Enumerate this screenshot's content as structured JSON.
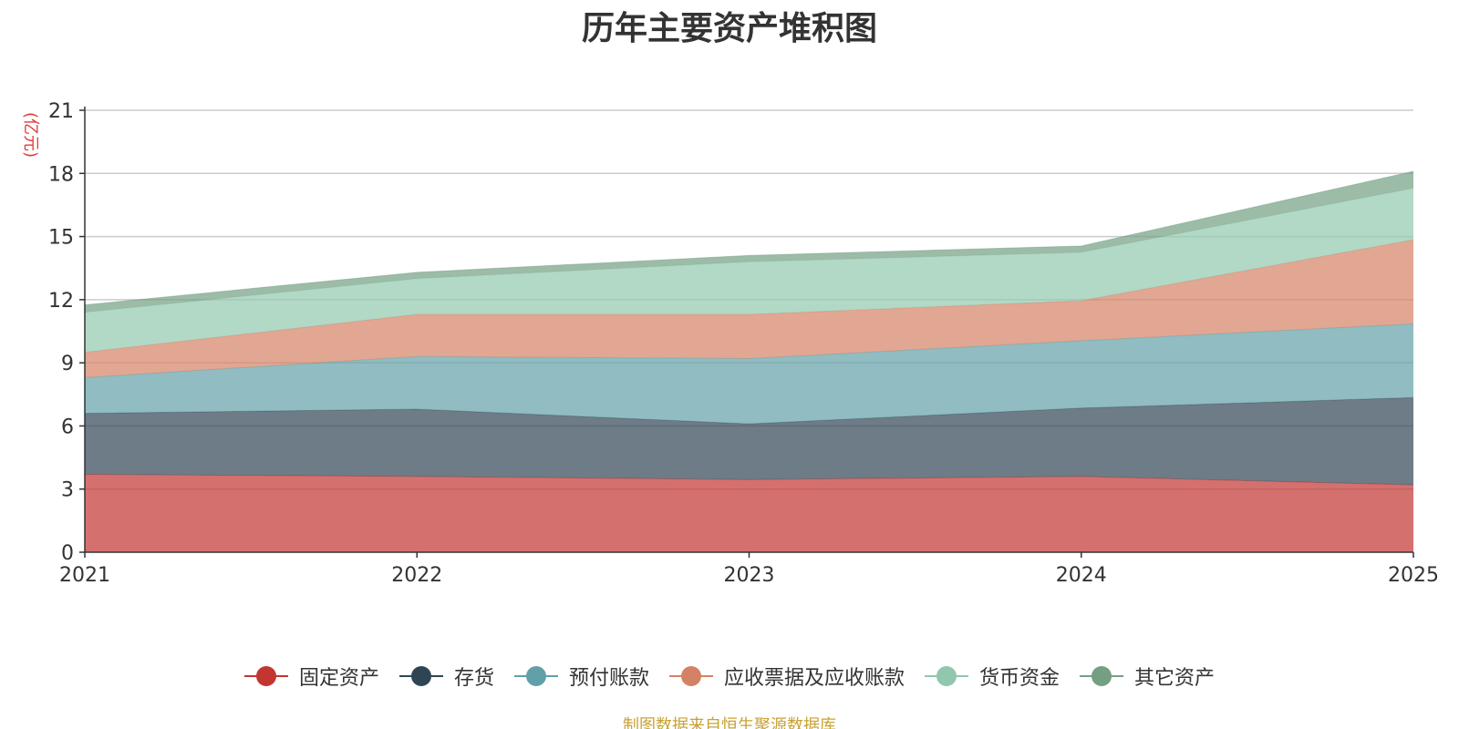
{
  "chart_data": {
    "type": "area",
    "stacked": true,
    "title": "历年主要资产堆积图",
    "unit_label": "(亿元)",
    "x": [
      "2021",
      "2022",
      "2023",
      "2024",
      "2025"
    ],
    "ylim": [
      0,
      21
    ],
    "yticks": [
      0,
      3,
      6,
      9,
      12,
      15,
      18,
      21
    ],
    "grid": true,
    "legend_position": "bottom",
    "series": [
      {
        "name": "固定资产",
        "color": "#c23531",
        "values": [
          3.7,
          3.6,
          3.45,
          3.6,
          3.2
        ]
      },
      {
        "name": "存货",
        "color": "#2f4554",
        "values": [
          2.9,
          3.2,
          2.65,
          3.25,
          4.15
        ]
      },
      {
        "name": "预付账款",
        "color": "#61a0a8",
        "values": [
          1.7,
          2.5,
          3.1,
          3.2,
          3.5
        ]
      },
      {
        "name": "应收票据及应收账款",
        "color": "#d48265",
        "values": [
          1.2,
          2.0,
          2.1,
          1.9,
          4.0
        ]
      },
      {
        "name": "货币资金",
        "color": "#91c7ae",
        "values": [
          1.9,
          1.7,
          2.5,
          2.3,
          2.45
        ]
      },
      {
        "name": "其它资产",
        "color": "#749f83",
        "values": [
          0.35,
          0.3,
          0.3,
          0.3,
          0.8
        ]
      }
    ]
  },
  "source_note": "制图数据来自恒生聚源数据库"
}
